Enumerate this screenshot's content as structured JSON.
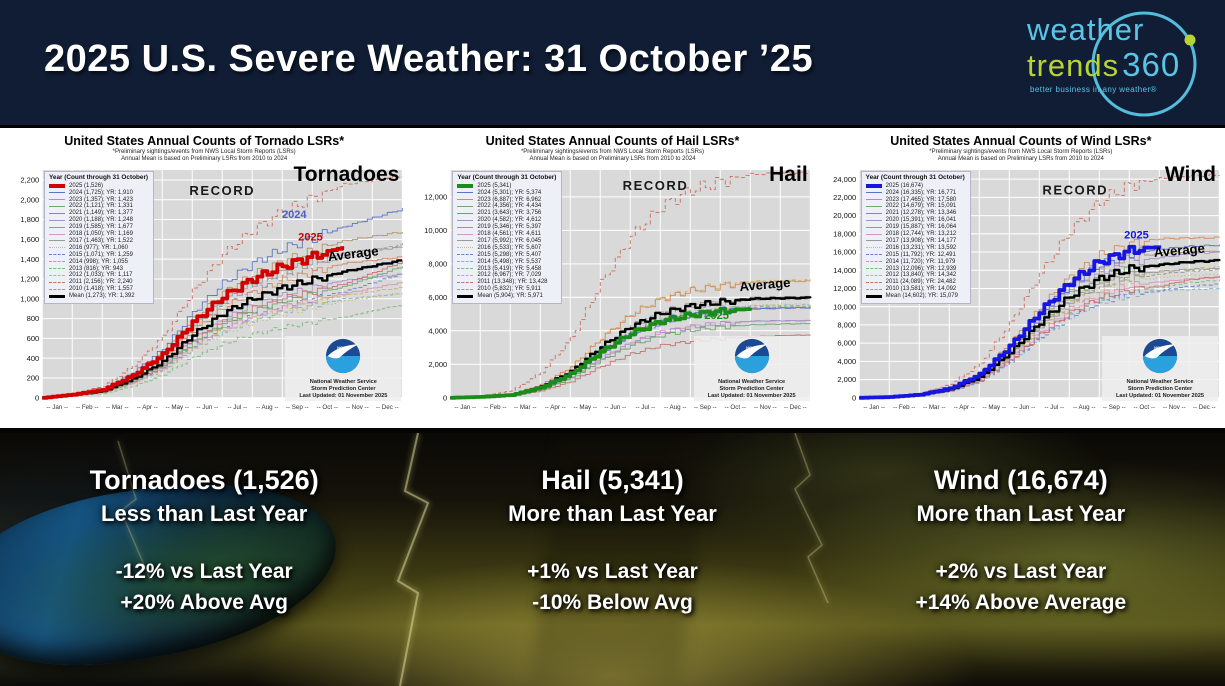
{
  "header": {
    "title": "2025 U.S. Severe Weather: 31 October ’25",
    "logo": {
      "word1": "weather",
      "word2": "trends",
      "word3": "360",
      "tagline": "better business in any weather®",
      "blue": "#58c5e6",
      "green": "#b8d432"
    }
  },
  "charts_common": {
    "legend_header": "Year (Count through 31 October)",
    "subtitle_line1": "*Preliminary sightings/events from NWS Local Storm Reports (LSRs)",
    "subtitle_line2": "Annual Mean is based on Preliminary LSRs from 2010 to 2024",
    "record_label": "RECORD",
    "x_axis_labels": [
      "-- Jan --",
      "-- Feb --",
      "-- Mar --",
      "-- Apr --",
      "-- May --",
      "-- Jun --",
      "-- Jul --",
      "-- Aug --",
      "-- Sep --",
      "-- Oct --",
      "-- Nov --",
      "-- Dec --"
    ],
    "noaa_caption": [
      "National Weather Service",
      "Storm Prediction Center",
      "Last Updated: 01 November 2025"
    ],
    "style_cycle": [
      {
        "w": 3.8
      },
      {
        "color": "#5b74c8",
        "w": 0.9
      },
      {
        "color": "#d28b5f",
        "w": 0.9
      },
      {
        "color": "#71a871",
        "w": 0.9
      },
      {
        "color": "#c87070",
        "w": 0.9
      },
      {
        "color": "#a393c8",
        "w": 0.9
      },
      {
        "color": "#b09468",
        "w": 0.9
      },
      {
        "color": "#d898bc",
        "w": 0.9
      },
      {
        "color": "#999999",
        "w": 0.9
      },
      {
        "color": "#c8bc6e",
        "w": 0.9,
        "dash": "1.5,2.5"
      },
      {
        "color": "#6b82cc",
        "w": 0.9,
        "dash": "4,2.5"
      },
      {
        "color": "#7fb0d8",
        "w": 0.9,
        "dash": "4,2.5"
      },
      {
        "color": "#7fbc7f",
        "w": 0.9,
        "dash": "4,2.5"
      },
      {
        "color": "#ccb45f",
        "w": 0.9,
        "dash": "4,2.5"
      },
      {
        "color": "#cc6e5f",
        "w": 0.9,
        "dash": "4,2.5"
      },
      {
        "color": "#9a9a9a",
        "w": 0.9,
        "dash": "4,2.5"
      },
      {
        "color": "#000000",
        "w": 2.4
      }
    ]
  },
  "chart_data": [
    {
      "type": "line",
      "title": "United States Annual Counts of Tornado LSRs*",
      "big_label": "Tornadoes",
      "accent": "#d40000",
      "ylim": [
        0,
        2300
      ],
      "ytick_step": 200,
      "ymax_tick": 2200,
      "grid": true,
      "legend_position": "upper-left",
      "profile": [
        0,
        0.02,
        0.05,
        0.14,
        0.27,
        0.47,
        0.63,
        0.74,
        0.82,
        0.88,
        0.94,
        0.97,
        1.0
      ],
      "series": [
        {
          "label": "2025 (1,526)",
          "oct": 1526,
          "yr": null
        },
        {
          "label": "2024 (1,725); YR: 1,910",
          "oct": 1725,
          "yr": 1910
        },
        {
          "label": "2023 (1,357); YR: 1,423",
          "oct": 1357,
          "yr": 1423
        },
        {
          "label": "2022 (1,121); YR: 1,331",
          "oct": 1121,
          "yr": 1331
        },
        {
          "label": "2021 (1,149); YR: 1,377",
          "oct": 1149,
          "yr": 1377
        },
        {
          "label": "2020 (1,188); YR: 1,248",
          "oct": 1188,
          "yr": 1248
        },
        {
          "label": "2019 (1,585); YR: 1,677",
          "oct": 1585,
          "yr": 1677
        },
        {
          "label": "2018 (1,050); YR: 1,169",
          "oct": 1050,
          "yr": 1169
        },
        {
          "label": "2017 (1,463); YR: 1,522",
          "oct": 1463,
          "yr": 1522
        },
        {
          "label": "2016 (977); YR: 1,060",
          "oct": 977,
          "yr": 1060
        },
        {
          "label": "2015 (1,071); YR: 1,259",
          "oct": 1071,
          "yr": 1259
        },
        {
          "label": "2014 (998); YR: 1,055",
          "oct": 998,
          "yr": 1055
        },
        {
          "label": "2013 (816); YR: 943",
          "oct": 816,
          "yr": 943
        },
        {
          "label": "2012 (1,033); YR: 1,117",
          "oct": 1033,
          "yr": 1117
        },
        {
          "label": "2011 (2,156); YR: 2,240",
          "oct": 2156,
          "yr": 2240
        },
        {
          "label": "2010 (1,418); YR: 1,557",
          "oct": 1418,
          "yr": 1557
        },
        {
          "label": "Mean (1,273); YR: 1,392",
          "oct": 1273,
          "yr": 1392
        }
      ],
      "labels": [
        {
          "text": "RECORD",
          "xf": 0.5,
          "y": 2050,
          "size": 13,
          "color": "#1a1a1a",
          "ls": 1.5
        },
        {
          "text": "2024",
          "xf": 0.7,
          "y": 1815,
          "size": 11,
          "color": "#4c5fc4"
        },
        {
          "text": "2025",
          "xf": 0.745,
          "y": 1590,
          "size": 11,
          "color": "#cc0000"
        },
        {
          "text": "Average",
          "xf": 0.865,
          "y": 1410,
          "size": 13,
          "color": "#000000",
          "rot": -7
        }
      ]
    },
    {
      "type": "line",
      "title": "United States Annual Counts of Hail LSRs*",
      "big_label": "Hail",
      "accent": "#1a8c1a",
      "ylim": [
        0,
        13600
      ],
      "ytick_step": 2000,
      "ymax_tick": 12000,
      "grid": true,
      "legend_position": "upper-left",
      "profile": [
        0,
        0.01,
        0.03,
        0.11,
        0.26,
        0.5,
        0.7,
        0.83,
        0.9,
        0.94,
        0.97,
        0.99,
        1.0
      ],
      "series": [
        {
          "label": "2025 (5,341)",
          "oct": 5341,
          "yr": null
        },
        {
          "label": "2024 (5,301); YR: 5,374",
          "oct": 5301,
          "yr": 5374
        },
        {
          "label": "2023 (6,887); YR: 6,962",
          "oct": 6887,
          "yr": 6962
        },
        {
          "label": "2022 (4,356); YR: 4,434",
          "oct": 4356,
          "yr": 4434
        },
        {
          "label": "2021 (3,643); YR: 3,756",
          "oct": 3643,
          "yr": 3756
        },
        {
          "label": "2020 (4,582); YR: 4,612",
          "oct": 4582,
          "yr": 4612
        },
        {
          "label": "2019 (5,346); YR: 5,397",
          "oct": 5346,
          "yr": 5397
        },
        {
          "label": "2018 (4,561); YR: 4,611",
          "oct": 4561,
          "yr": 4611
        },
        {
          "label": "2017 (5,992); YR: 6,045",
          "oct": 5992,
          "yr": 6045
        },
        {
          "label": "2016 (5,533); YR: 5,607",
          "oct": 5533,
          "yr": 5607
        },
        {
          "label": "2015 (5,298); YR: 5,407",
          "oct": 5298,
          "yr": 5407
        },
        {
          "label": "2014 (5,498); YR: 5,537",
          "oct": 5498,
          "yr": 5537
        },
        {
          "label": "2013 (5,419); YR: 5,458",
          "oct": 5419,
          "yr": 5458
        },
        {
          "label": "2012 (6,967); YR: 7,029",
          "oct": 6967,
          "yr": 7029
        },
        {
          "label": "2011 (13,348); YR: 13,428",
          "oct": 13348,
          "yr": 13428
        },
        {
          "label": "2010 (5,832); YR: 5,911",
          "oct": 5832,
          "yr": 5911
        },
        {
          "label": "Mean (5,904); YR: 5,971",
          "oct": 5904,
          "yr": 5971
        }
      ],
      "labels": [
        {
          "text": "RECORD",
          "xf": 0.57,
          "y": 12400,
          "size": 13,
          "color": "#1a1a1a",
          "ls": 1.5
        },
        {
          "text": "2025",
          "xf": 0.74,
          "y": 4700,
          "size": 11,
          "color": "#1a8c1a"
        },
        {
          "text": "Average",
          "xf": 0.875,
          "y": 6500,
          "size": 13,
          "color": "#000000",
          "rot": -5
        }
      ]
    },
    {
      "type": "line",
      "title": "United States Annual Counts of Wind LSRs*",
      "big_label": "Wind",
      "accent": "#1616e0",
      "ylim": [
        0,
        25000
      ],
      "ytick_step": 2000,
      "ymax_tick": 24000,
      "grid": true,
      "legend_position": "upper-left",
      "profile": [
        0,
        0.005,
        0.02,
        0.06,
        0.15,
        0.33,
        0.55,
        0.74,
        0.87,
        0.94,
        0.97,
        0.99,
        1.0
      ],
      "series": [
        {
          "label": "2025 (16,674)",
          "oct": 16674,
          "yr": null
        },
        {
          "label": "2024 (16,335); YR: 16,771",
          "oct": 16335,
          "yr": 16771
        },
        {
          "label": "2023 (17,465); YR: 17,580",
          "oct": 17465,
          "yr": 17580
        },
        {
          "label": "2022 (14,679); YR: 15,091",
          "oct": 14679,
          "yr": 15091
        },
        {
          "label": "2021 (12,278); YR: 13,346",
          "oct": 12278,
          "yr": 13346
        },
        {
          "label": "2020 (15,391); YR: 16,041",
          "oct": 15391,
          "yr": 16041
        },
        {
          "label": "2019 (15,887); YR: 16,064",
          "oct": 15887,
          "yr": 16064
        },
        {
          "label": "2018 (12,744); YR: 13,212",
          "oct": 12744,
          "yr": 13212
        },
        {
          "label": "2017 (13,908); YR: 14,177",
          "oct": 13908,
          "yr": 14177
        },
        {
          "label": "2016 (13,231); YR: 13,592",
          "oct": 13231,
          "yr": 13592
        },
        {
          "label": "2015 (11,792); YR: 12,491",
          "oct": 11792,
          "yr": 12491
        },
        {
          "label": "2014 (11,720); YR: 11,979",
          "oct": 11720,
          "yr": 11979
        },
        {
          "label": "2013 (12,096); YR: 12,939",
          "oct": 12096,
          "yr": 12939
        },
        {
          "label": "2012 (13,840); YR: 14,342",
          "oct": 13840,
          "yr": 14342
        },
        {
          "label": "2011 (24,089); YR: 24,482",
          "oct": 24089,
          "yr": 24482
        },
        {
          "label": "2010 (13,581); YR: 14,092",
          "oct": 13581,
          "yr": 14092
        },
        {
          "label": "Mean (14,602); YR: 15,079",
          "oct": 14602,
          "yr": 15079
        }
      ],
      "labels": [
        {
          "text": "RECORD",
          "xf": 0.6,
          "y": 22300,
          "size": 13,
          "color": "#1a1a1a",
          "ls": 1.5
        },
        {
          "text": "2025",
          "xf": 0.77,
          "y": 17500,
          "size": 11,
          "color": "#1616e0"
        },
        {
          "text": "Average",
          "xf": 0.89,
          "y": 15700,
          "size": 13,
          "color": "#000000",
          "rot": -5
        }
      ]
    }
  ],
  "summary": {
    "panels": [
      {
        "heading": "Tornadoes (1,526)",
        "compare": "Less than Last Year",
        "stat1": "-12% vs Last Year",
        "stat2": "+20% Above Avg"
      },
      {
        "heading": "Hail (5,341)",
        "compare": "More than Last Year",
        "stat1": "+1% vs Last Year",
        "stat2": "-10% Below Avg"
      },
      {
        "heading": "Wind (16,674)",
        "compare": "More than Last Year",
        "stat1": "+2% vs Last Year",
        "stat2": "+14% Above Average"
      }
    ]
  }
}
